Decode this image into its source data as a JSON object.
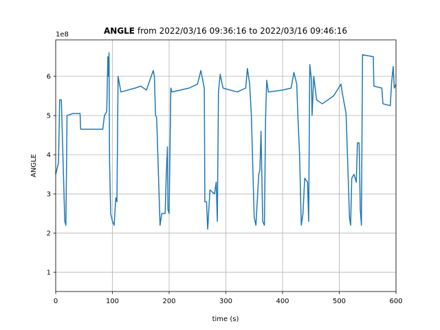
{
  "chart_data": {
    "type": "line",
    "title_bold": "ANGLE",
    "title": "from 2022/03/16 09:36:16 to 2022/03/16 09:46:16",
    "y_offset_label": "1e8",
    "xlabel": "time (s)",
    "ylabel": "ANGLE",
    "xlim": [
      0,
      600
    ],
    "xticks": [
      0,
      100,
      200,
      300,
      400,
      500,
      600
    ],
    "ylim": [
      0.51,
      6.93
    ],
    "yticks": [
      1,
      2,
      3,
      4,
      5,
      6
    ],
    "grid": true,
    "series": [
      {
        "color": "#1f77b4",
        "x": [
          0,
          5,
          7,
          10,
          16,
          18,
          20,
          30,
          43,
          44,
          83,
          86,
          90,
          92,
          93,
          94,
          95,
          97,
          100,
          103,
          106,
          108,
          110,
          115,
          140,
          150,
          160,
          172,
          174,
          176,
          178,
          184,
          187,
          193,
          195,
          197,
          198,
          200,
          203,
          205,
          235,
          250,
          256,
          262,
          263,
          266,
          268,
          272,
          280,
          283,
          285,
          287,
          290,
          295,
          320,
          335,
          338,
          342,
          345,
          350,
          353,
          358,
          360,
          362,
          365,
          368,
          370,
          372,
          375,
          400,
          415,
          420,
          425,
          427,
          430,
          433,
          436,
          439,
          444,
          446,
          448,
          451,
          452,
          455,
          460,
          470,
          480,
          490,
          503,
          505,
          512,
          518,
          520,
          522,
          526,
          530,
          532,
          535,
          537,
          539,
          541,
          560,
          561,
          575,
          577,
          590,
          592,
          595,
          597,
          600
        ],
        "values": [
          3.5,
          3.8,
          5.4,
          5.4,
          2.3,
          2.2,
          5.0,
          5.05,
          5.05,
          4.65,
          4.65,
          5.0,
          5.1,
          6.5,
          6.0,
          6.6,
          3.8,
          2.5,
          2.3,
          2.2,
          2.9,
          2.8,
          6.0,
          5.6,
          5.7,
          5.75,
          5.65,
          6.15,
          6.0,
          5.0,
          4.95,
          2.2,
          2.5,
          2.5,
          3.5,
          4.2,
          2.6,
          2.5,
          5.7,
          5.6,
          5.7,
          5.8,
          6.15,
          5.7,
          2.8,
          2.8,
          2.1,
          3.1,
          3.0,
          3.3,
          2.3,
          5.6,
          6.05,
          5.7,
          5.6,
          5.7,
          6.2,
          5.8,
          5.0,
          2.4,
          2.2,
          3.5,
          3.6,
          4.6,
          2.3,
          2.2,
          4.9,
          5.9,
          5.6,
          5.65,
          5.7,
          6.1,
          5.8,
          5.0,
          4.0,
          2.2,
          2.5,
          3.4,
          3.3,
          2.3,
          6.3,
          5.9,
          5.0,
          6.0,
          5.4,
          5.3,
          5.4,
          5.5,
          5.8,
          5.6,
          5.05,
          2.4,
          2.2,
          3.4,
          3.5,
          3.3,
          4.3,
          4.3,
          2.6,
          2.2,
          6.55,
          6.5,
          5.75,
          5.7,
          5.3,
          5.25,
          5.8,
          6.25,
          5.7,
          5.8
        ]
      }
    ]
  }
}
